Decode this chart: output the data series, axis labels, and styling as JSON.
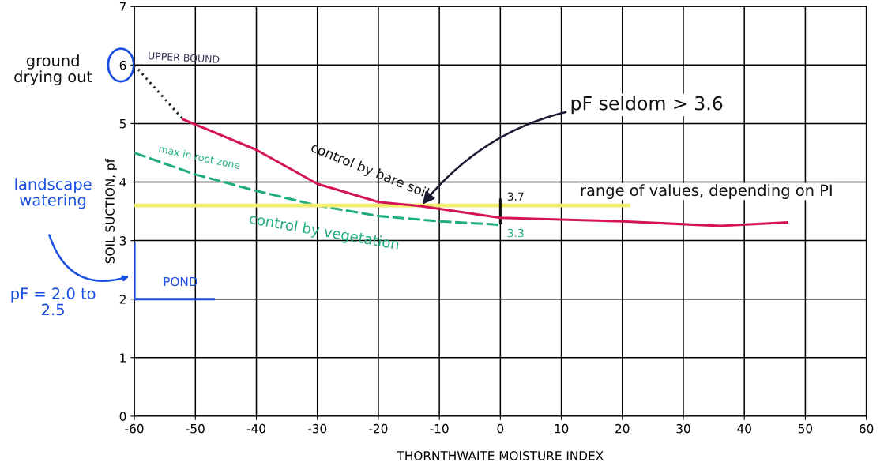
{
  "chart_data": {
    "type": "line",
    "xlabel": "THORNTHWAITE MOISTURE INDEX",
    "ylabel": "SOIL SUCTION, pf",
    "xlim": [
      -60,
      60
    ],
    "xticks": [
      -60,
      -50,
      -40,
      -30,
      -20,
      -10,
      0,
      10,
      20,
      30,
      40,
      50,
      60
    ],
    "ylim": [
      0,
      7
    ],
    "yticks": [
      0,
      1,
      2,
      3,
      4,
      5,
      6,
      7
    ],
    "grid": true,
    "marker": "none",
    "series": [
      {
        "color": "#d4145a",
        "line_style": "solid",
        "x": [
          -52,
          -40,
          -30,
          -20,
          -13,
          0,
          10,
          20,
          30,
          36,
          47
        ],
        "values": [
          5.07,
          4.55,
          3.97,
          3.66,
          3.59,
          3.39,
          3.36,
          3.33,
          3.28,
          3.25,
          3.31
        ]
      },
      {
        "color": "#222222",
        "line_style": "dotted",
        "x": [
          -60,
          -52
        ],
        "values": [
          6,
          5.07
        ]
      },
      {
        "color": "#1fae7a",
        "line_style": "dashed",
        "x": [
          -60,
          -50,
          -40,
          -30,
          -20,
          -10,
          0
        ],
        "values": [
          4.5,
          4.13,
          3.85,
          3.6,
          3.42,
          3.33,
          3.27
        ]
      },
      {
        "color": "#f2ee6a",
        "line_style": "solid",
        "x": [
          -60,
          21
        ],
        "values": [
          3.6,
          3.6
        ]
      },
      {
        "color": "#1a4fe0",
        "line_style": "solid",
        "x": [
          -60,
          -47
        ],
        "values": [
          2,
          2
        ]
      },
      {
        "color": "#1a4fe0",
        "line_style": "solid",
        "x": [
          -60,
          -60
        ],
        "values": [
          2,
          2.95
        ]
      },
      {
        "color": "#111111",
        "line_style": "solid",
        "x": [
          0,
          0
        ],
        "values": [
          3.3,
          3.7
        ]
      }
    ],
    "annotations": [
      {
        "text": "UPPER BOUND",
        "x": -60,
        "y": 6
      },
      {
        "text": "control by bare soil",
        "x": -35,
        "y": 4.3
      },
      {
        "text": "max in root zone",
        "x": -58,
        "y": 4.45
      },
      {
        "text": "control by vegetation",
        "x": -45,
        "y": 3.7
      },
      {
        "text": "3.7",
        "x": 0,
        "y": 3.7
      },
      {
        "text": "3.3",
        "x": 0,
        "y": 3.3
      },
      {
        "text": "POND",
        "x": -60,
        "y": 2
      },
      {
        "text": "range of values, depending on PI",
        "x": 8,
        "y": 3.5
      },
      {
        "text": "pF seldom > 3.6",
        "x": -13,
        "y": 3.59
      },
      "ground drying out",
      "landscape watering",
      "pF = 2.0 to 2.5"
    ]
  }
}
